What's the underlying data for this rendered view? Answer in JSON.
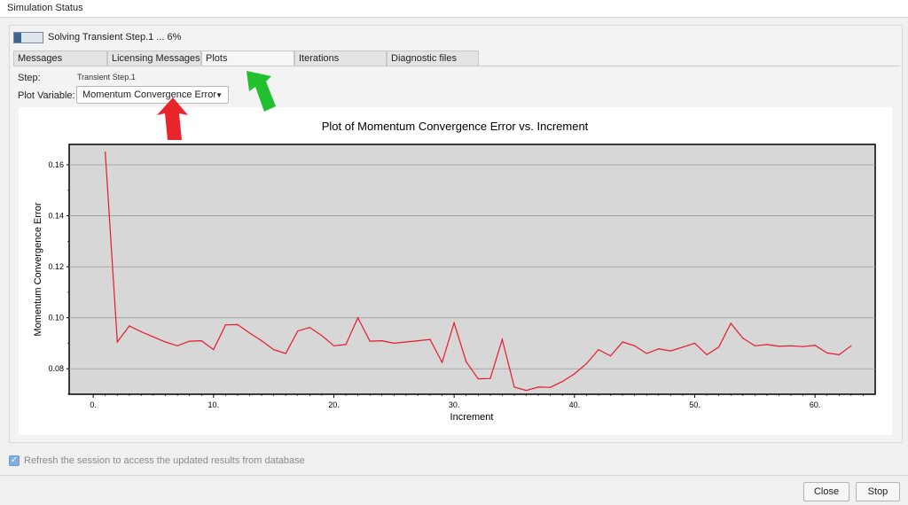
{
  "window": {
    "title": "Simulation Status"
  },
  "progress": {
    "label": "Solving Transient Step.1 ... 6%",
    "fraction": 0.06
  },
  "tabs": [
    {
      "label": "Messages",
      "active": false
    },
    {
      "label": "Licensing Messages",
      "active": false
    },
    {
      "label": "Plots",
      "active": true
    },
    {
      "label": "Iterations",
      "active": false
    },
    {
      "label": "Diagnostic files",
      "active": false
    }
  ],
  "step": {
    "label": "Step:",
    "value": "Transient Step.1"
  },
  "plot_variable": {
    "label": "Plot Variable:",
    "selected": "Momentum Convergence Error"
  },
  "chart_data": {
    "type": "line",
    "title": "Plot of Momentum Convergence Error vs. Increment",
    "xlabel": "Increment",
    "ylabel": "Momentum Convergence Error",
    "xlim": [
      -2,
      65
    ],
    "ylim": [
      0.07,
      0.168
    ],
    "x_ticks": [
      0,
      10,
      20,
      30,
      40,
      50,
      60
    ],
    "x_tick_labels": [
      "0.",
      "10.",
      "20.",
      "30.",
      "40.",
      "50.",
      "60."
    ],
    "y_ticks": [
      0.08,
      0.1,
      0.12,
      0.14,
      0.16
    ],
    "y_tick_labels": [
      "0.08",
      "0.10",
      "0.12",
      "0.14",
      "0.16"
    ],
    "grid": true,
    "background": "#d7d7d7",
    "series": [
      {
        "color": "#e8192c",
        "x": [
          1,
          2,
          3,
          4,
          5,
          6,
          7,
          8,
          9,
          10,
          11,
          12,
          13,
          14,
          15,
          16,
          17,
          18,
          19,
          20,
          21,
          22,
          23,
          24,
          25,
          26,
          27,
          28,
          29,
          30,
          31,
          32,
          33,
          34,
          35,
          36,
          37,
          38,
          39,
          40,
          41,
          42,
          43,
          44,
          45,
          46,
          47,
          48,
          49,
          50,
          51,
          52,
          53,
          54,
          55,
          56,
          57,
          58,
          59,
          60,
          61,
          62,
          63
        ],
        "values": [
          0.165,
          0.0905,
          0.0968,
          0.0945,
          0.0925,
          0.0905,
          0.089,
          0.0908,
          0.091,
          0.0875,
          0.0972,
          0.0973,
          0.094,
          0.091,
          0.0875,
          0.086,
          0.0948,
          0.0962,
          0.093,
          0.089,
          0.0895,
          0.1,
          0.0908,
          0.091,
          0.09,
          0.0905,
          0.091,
          0.0915,
          0.0825,
          0.098,
          0.0828,
          0.076,
          0.0762,
          0.0915,
          0.0728,
          0.0715,
          0.0728,
          0.0727,
          0.075,
          0.078,
          0.082,
          0.0875,
          0.085,
          0.0905,
          0.089,
          0.086,
          0.0878,
          0.087,
          0.0885,
          0.09,
          0.0855,
          0.0885,
          0.0978,
          0.092,
          0.089,
          0.0895,
          0.0888,
          0.089,
          0.0887,
          0.0892,
          0.0862,
          0.0855,
          0.089
        ]
      }
    ]
  },
  "refresh": {
    "label": "Refresh the session to access the updated results from database",
    "checked": true
  },
  "buttons": {
    "close": "Close",
    "stop": "Stop"
  },
  "annotations": {
    "red_arrow_color": "#e8252b",
    "green_arrow_color": "#22c02f"
  }
}
